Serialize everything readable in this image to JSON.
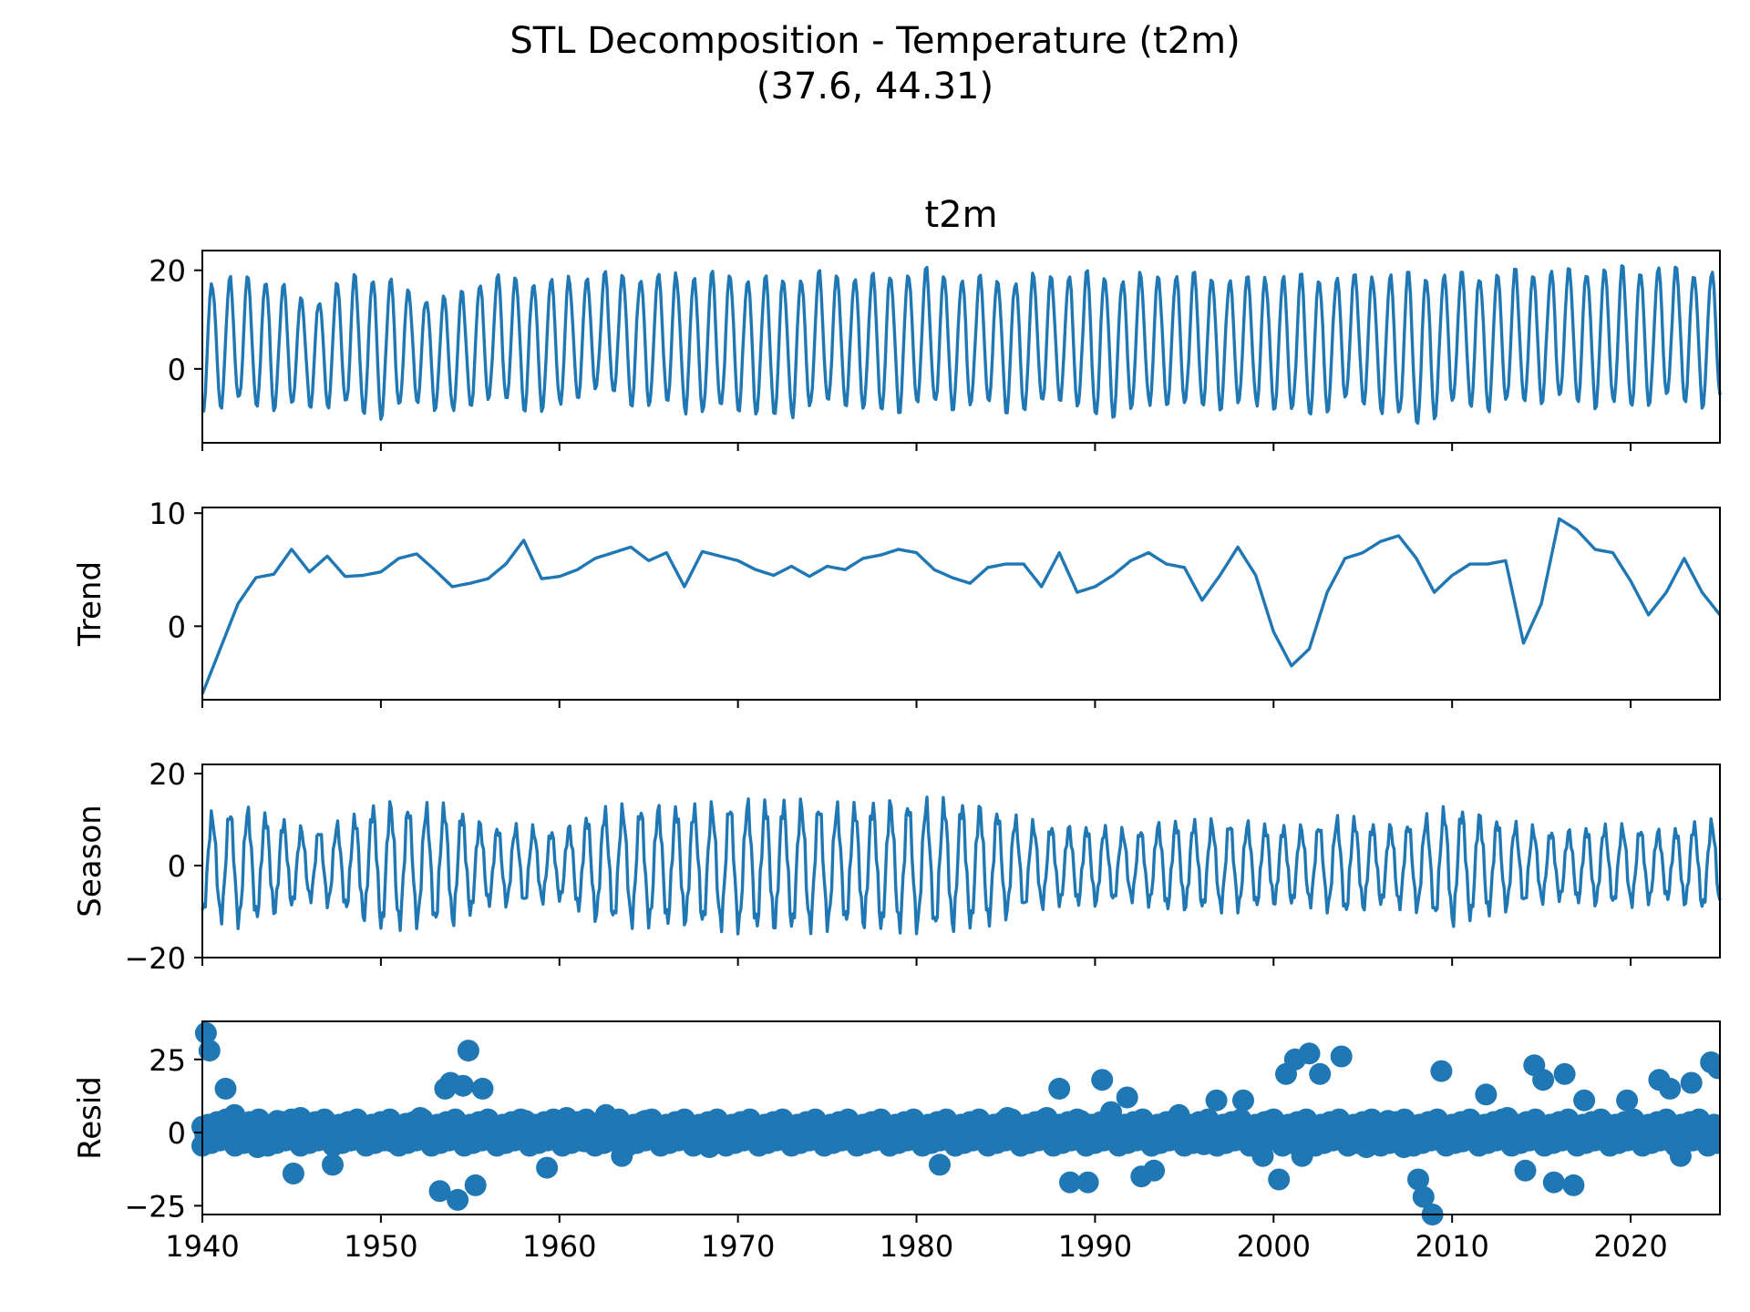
{
  "figure": {
    "title": "STL Decomposition - Temperature (t2m)",
    "subtitle": "(37.6, 44.31)"
  },
  "chart_data": [
    {
      "type": "line",
      "title": "t2m",
      "ylabel": "",
      "xlabel": "",
      "xlim": [
        1940,
        2025
      ],
      "ylim": [
        -15,
        24
      ],
      "yticks": [
        0,
        20
      ],
      "color": "#1f77b4",
      "series": [
        {
          "x": [
            1940,
            1942,
            1944,
            1946,
            1948,
            1950,
            1952,
            1954,
            1956,
            1958,
            1960,
            1962,
            1964,
            1966,
            1968,
            1970,
            1972,
            1974,
            1976,
            1978,
            1980,
            1982,
            1984,
            1986,
            1988,
            1990,
            1992,
            1994,
            1996,
            1998,
            2000,
            2002,
            2004,
            2006,
            2008,
            2010,
            2012,
            2014,
            2016,
            2018,
            2020,
            2022,
            2024
          ],
          "summer_max": [
            19,
            19,
            19.5,
            14,
            19.5,
            20,
            16,
            15,
            19.5,
            19.5,
            19,
            20,
            20,
            20,
            20,
            20,
            19.5,
            20,
            20,
            20,
            21,
            19.5,
            19.5,
            19.5,
            20,
            20.5,
            19.5,
            20,
            20,
            19.5,
            20,
            19.5,
            20,
            20,
            20,
            20.5,
            20.5,
            20.5,
            21,
            21.5,
            21,
            21.5,
            21
          ],
          "winter_min": [
            -9,
            -8,
            -9,
            -8,
            -9,
            -11,
            -7,
            -10,
            -7,
            -9,
            -9,
            -5,
            -8,
            -8,
            -10,
            -9,
            -11,
            -9,
            -8,
            -10,
            -8,
            -9,
            -8,
            -10,
            -7,
            -11,
            -9,
            -8,
            -9,
            -8,
            -9,
            -11,
            -7,
            -9,
            -13,
            -8,
            -9,
            -8,
            -7,
            -8,
            -9,
            -7,
            -8
          ]
        }
      ]
    },
    {
      "type": "line",
      "title": "",
      "ylabel": "Trend",
      "xlabel": "",
      "xlim": [
        1940,
        2025
      ],
      "ylim": [
        -6.5,
        10.5
      ],
      "yticks": [
        0,
        10
      ],
      "color": "#1f77b4",
      "series": [
        {
          "x": [
            1940,
            1941,
            1942,
            1943,
            1944,
            1945,
            1946,
            1947,
            1948,
            1949,
            1950,
            1951,
            1952,
            1953,
            1954,
            1955,
            1956,
            1957,
            1958,
            1959,
            1960,
            1961,
            1962,
            1963,
            1964,
            1965,
            1966,
            1967,
            1968,
            1969,
            1970,
            1971,
            1972,
            1973,
            1974,
            1975,
            1976,
            1977,
            1978,
            1979,
            1980,
            1981,
            1982,
            1983,
            1984,
            1985,
            1986,
            1987,
            1988,
            1989,
            1990,
            1991,
            1992,
            1993,
            1994,
            1995,
            1996,
            1997,
            1998,
            1999,
            2000,
            2001,
            2002,
            2003,
            2004,
            2005,
            2006,
            2007,
            2008,
            2009,
            2010,
            2011,
            2012,
            2013,
            2014,
            2015,
            2016,
            2017,
            2018,
            2019,
            2020,
            2021,
            2022,
            2023,
            2024,
            2025
          ],
          "y": [
            -6,
            -2,
            2,
            4.3,
            4.6,
            6.8,
            4.8,
            6.2,
            4.4,
            4.5,
            4.8,
            6,
            6.4,
            5,
            3.5,
            3.8,
            4.2,
            5.5,
            7.6,
            4.2,
            4.4,
            5,
            6,
            6.5,
            7,
            5.8,
            6.5,
            3.5,
            6.6,
            6.2,
            5.8,
            5,
            4.5,
            5.3,
            4.4,
            5.3,
            5,
            6,
            6.3,
            6.8,
            6.5,
            5,
            4.3,
            3.8,
            5.2,
            5.5,
            5.5,
            3.5,
            6.5,
            3,
            3.5,
            4.5,
            5.8,
            6.5,
            5.5,
            5.2,
            2.3,
            4.5,
            7,
            4.5,
            -0.5,
            -3.5,
            -2,
            3,
            6,
            6.5,
            7.5,
            8,
            6,
            3,
            4.5,
            5.5,
            5.5,
            5.8,
            -1.5,
            2,
            9.5,
            8.5,
            6.8,
            6.5,
            4,
            1,
            3,
            6,
            3,
            1
          ]
        }
      ]
    },
    {
      "type": "line",
      "title": "",
      "ylabel": "Season",
      "xlabel": "",
      "xlim": [
        1940,
        2025
      ],
      "ylim": [
        -20,
        22
      ],
      "yticks": [
        -20,
        0,
        20
      ],
      "color": "#1f77b4",
      "series": [
        {
          "x": [
            1940,
            1942,
            1944,
            1946,
            1948,
            1950,
            1952,
            1954,
            1956,
            1958,
            1960,
            1962,
            1964,
            1966,
            1968,
            1970,
            1972,
            1974,
            1976,
            1978,
            1980,
            1982,
            1984,
            1986,
            1988,
            1990,
            1992,
            1994,
            1996,
            1998,
            2000,
            2002,
            2004,
            2006,
            2008,
            2010,
            2012,
            2014,
            2016,
            2018,
            2020,
            2022,
            2024
          ],
          "amplitude": [
            10,
            12,
            10,
            7,
            9,
            13,
            12,
            12,
            8,
            8,
            7,
            11,
            12,
            12,
            12,
            13,
            13,
            13,
            12,
            13,
            13,
            13,
            12,
            9,
            8,
            8,
            7,
            9,
            9,
            9,
            8,
            8,
            10,
            8,
            9,
            12,
            10,
            8,
            7,
            8,
            8,
            7,
            9
          ]
        }
      ]
    },
    {
      "type": "scatter",
      "title": "",
      "ylabel": "Resid",
      "xlabel": "",
      "xlim": [
        1940,
        2025
      ],
      "ylim": [
        -28,
        38
      ],
      "yticks": [
        -25,
        0,
        25
      ],
      "xticks": [
        1940,
        1950,
        1960,
        1970,
        1980,
        1990,
        2000,
        2010,
        2020
      ],
      "color": "#1f77b4",
      "series": [
        {
          "x": [
            1940,
            1940.2,
            1940.4,
            1941.3,
            1941.8,
            1942.4,
            1943.1,
            1944.2,
            1945.1,
            1945.5,
            1946,
            1946.9,
            1947.3,
            1948.6,
            1949.5,
            1950.6,
            1951.4,
            1952.2,
            1952.8,
            1953.3,
            1953.6,
            1953.9,
            1954.3,
            1954.6,
            1954.9,
            1955.3,
            1955.7,
            1956.3,
            1957.2,
            1958.1,
            1959.3,
            1960.4,
            1961.4,
            1962.6,
            1963.5,
            1964.8,
            1965.9,
            1967.1,
            1968.4,
            1969.5,
            1970.7,
            1971.8,
            1973.2,
            1974.5,
            1975.9,
            1977.3,
            1978.6,
            1979.9,
            1981.3,
            1982.6,
            1983.8,
            1985.1,
            1986.3,
            1987.3,
            1987.6,
            1988,
            1988.6,
            1989.2,
            1989.6,
            1990.4,
            1990.9,
            1991.8,
            1992.6,
            1993.3,
            1994.7,
            1996.1,
            1996.8,
            1997.5,
            1998.3,
            1999.4,
            1999.8,
            2000.3,
            2000.7,
            2001.2,
            2001.6,
            2002,
            2002.6,
            2003.8,
            2005.2,
            2006.4,
            2007.3,
            2008.1,
            2008.4,
            2008.9,
            2009.4,
            2010.6,
            2011.9,
            2013.1,
            2014.1,
            2014.6,
            2015.1,
            2015.7,
            2016.3,
            2016.8,
            2017.4,
            2018.6,
            2019.8,
            2021.1,
            2021.6,
            2022.2,
            2022.8,
            2023.4,
            2024.1,
            2024.5,
            2024.9
          ],
          "y": [
            2,
            34,
            28,
            15,
            6,
            -2,
            -5,
            4,
            -14,
            5,
            -3,
            4,
            -11,
            -2,
            2,
            -3,
            3,
            5,
            -1,
            -20,
            15,
            17,
            -23,
            16,
            28,
            -18,
            15,
            2,
            -2,
            4,
            -12,
            5,
            -3,
            6,
            -8,
            4,
            -3,
            3,
            -5,
            2,
            -2,
            3,
            -3,
            2,
            -2,
            3,
            -2,
            2,
            -11,
            2,
            -2,
            5,
            -2,
            5,
            -3,
            15,
            -17,
            4,
            -17,
            18,
            7,
            12,
            -15,
            -13,
            6,
            -4,
            11,
            3,
            11,
            -8,
            4,
            -16,
            20,
            25,
            -8,
            27,
            20,
            26,
            -5,
            4,
            -5,
            -16,
            -22,
            -28,
            21,
            -3,
            13,
            5,
            -13,
            23,
            18,
            -17,
            20,
            -18,
            11,
            3,
            11,
            2,
            18,
            15,
            -8,
            17,
            2,
            24,
            22
          ]
        }
      ]
    }
  ]
}
